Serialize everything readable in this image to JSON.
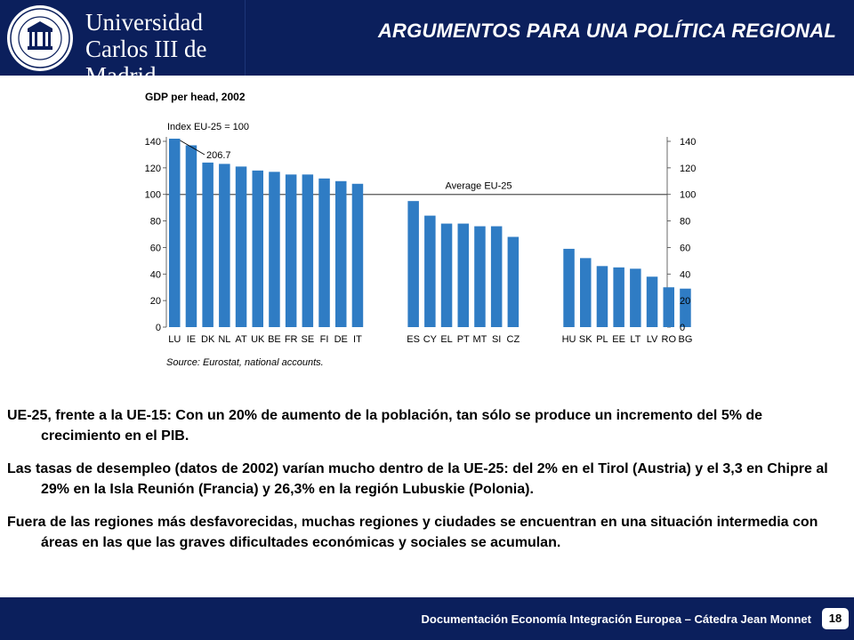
{
  "header": {
    "university_line1": "Universidad",
    "university_line2": "Carlos III de Madrid",
    "slide_title": "ARGUMENTOS PARA UNA POLÍTICA REGIONAL",
    "colors": {
      "header_bg": "#0b1f5c",
      "bar": "#2f7cc4"
    }
  },
  "chart_data": {
    "type": "bar",
    "title": "GDP per head, 2002",
    "index_label": "Index EU-25 = 100",
    "annotation": "206.7",
    "average_label": "Average EU-25",
    "average_value": 100,
    "source": "Source: Eurostat, national accounts.",
    "ylim": [
      0,
      140
    ],
    "yticks": [
      0,
      20,
      40,
      60,
      80,
      100,
      120,
      140
    ],
    "groups": [
      {
        "categories": [
          "LU",
          "IE",
          "DK",
          "NL",
          "AT",
          "UK",
          "BE",
          "FR",
          "SE",
          "FI",
          "DE",
          "IT"
        ],
        "values": [
          142,
          137,
          124,
          123,
          121,
          118,
          117,
          115,
          115,
          112,
          110,
          108
        ]
      },
      {
        "categories": [
          "ES",
          "CY",
          "EL",
          "PT",
          "MT",
          "SI",
          "CZ"
        ],
        "values": [
          95,
          84,
          78,
          78,
          76,
          76,
          68
        ]
      },
      {
        "categories": [
          "HU",
          "SK",
          "PL",
          "EE",
          "LT",
          "LV",
          "RO",
          "BG"
        ],
        "values": [
          59,
          52,
          46,
          45,
          44,
          38,
          30,
          29
        ]
      }
    ]
  },
  "body": {
    "p1": "UE-25, frente a la UE-15: Con un 20% de aumento de la población, tan sólo se produce un incremento del 5% de crecimiento en el PIB.",
    "p2": "Las tasas de desempleo (datos de 2002) varían mucho dentro de la UE-25: del 2% en el Tirol (Austria) y el 3,3  en Chipre al 29% en la Isla Reunión (Francia) y 26,3% en la región Lubuskie (Polonia).",
    "p3": "Fuera de las regiones más desfavorecidas, muchas regiones y ciudades se encuentran en una situación intermedia con áreas en las que las graves dificultades económicas y sociales se acumulan."
  },
  "footer": {
    "text": "Documentación Economía Integración Europea – Cátedra Jean Monnet",
    "page": "18"
  }
}
